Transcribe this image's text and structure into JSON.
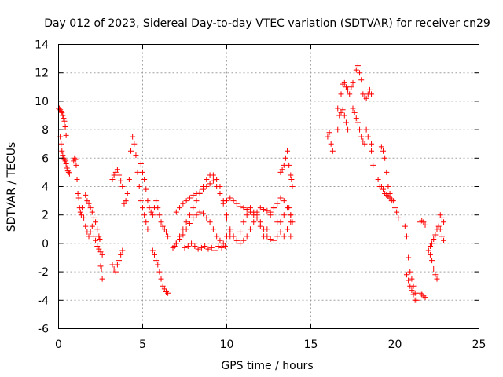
{
  "chart_data": {
    "type": "scatter",
    "title": "Day 012 of 2023, Sidereal Day-to-day VTEC variation (SDTVAR) for receiver cn29",
    "xlabel": "GPS time / hours",
    "ylabel": "SDTVAR / TECUs",
    "xlim": [
      0,
      25
    ],
    "ylim": [
      -6,
      14
    ],
    "xticks": [
      "0",
      "5",
      "10",
      "15",
      "20",
      "25"
    ],
    "yticks": [
      "-6",
      "-4",
      "-2",
      "0",
      "2",
      "4",
      "6",
      "8",
      "10",
      "12",
      "14"
    ],
    "grid": true,
    "marker": "+",
    "color": "#ff0000",
    "series": [
      {
        "name": "SDTVAR",
        "x": [
          0.0,
          0.05,
          0.1,
          0.15,
          0.2,
          0.25,
          0.3,
          0.35,
          0.4,
          0.45,
          0.1,
          0.15,
          0.2,
          0.25,
          0.3,
          0.35,
          0.4,
          0.45,
          0.5,
          0.55,
          0.6,
          0.65,
          0.9,
          0.95,
          1.0,
          1.05,
          1.1,
          1.15,
          1.2,
          1.25,
          1.3,
          1.35,
          1.4,
          1.5,
          1.6,
          1.7,
          1.8,
          1.9,
          2.0,
          2.1,
          2.2,
          2.3,
          2.4,
          2.5,
          2.6,
          1.6,
          1.7,
          1.8,
          1.9,
          2.0,
          2.1,
          2.2,
          2.3,
          2.4,
          2.45,
          2.5,
          2.55,
          2.6,
          3.2,
          3.3,
          3.4,
          3.5,
          3.6,
          3.7,
          3.8,
          3.2,
          3.3,
          3.4,
          3.5,
          3.6,
          3.7,
          3.8,
          3.9,
          4.0,
          4.1,
          4.2,
          4.3,
          4.4,
          4.5,
          4.6,
          4.7,
          4.8,
          4.9,
          5.0,
          5.1,
          5.2,
          5.3,
          4.9,
          5.0,
          5.1,
          5.2,
          5.3,
          5.4,
          5.5,
          5.6,
          5.7,
          5.8,
          5.9,
          6.0,
          6.1,
          6.2,
          6.3,
          6.4,
          6.5,
          5.6,
          5.7,
          5.8,
          5.9,
          6.0,
          6.1,
          6.2,
          6.3,
          6.4,
          6.5,
          6.8,
          6.9,
          7.0,
          7.2,
          7.4,
          7.6,
          7.8,
          8.0,
          8.2,
          8.4,
          8.6,
          8.8,
          9.0,
          9.2,
          9.4,
          9.6,
          9.8,
          10.0,
          7.0,
          7.2,
          7.4,
          7.6,
          7.8,
          8.0,
          8.2,
          8.4,
          8.6,
          8.8,
          9.0,
          9.2,
          9.4,
          9.6,
          9.8,
          10.0,
          10.2,
          7.0,
          7.2,
          7.4,
          7.6,
          7.8,
          8.0,
          8.2,
          8.4,
          8.6,
          8.8,
          9.0,
          9.2,
          9.4,
          9.6,
          9.8,
          7.5,
          7.7,
          7.9,
          8.1,
          8.3,
          8.5,
          8.7,
          8.9,
          9.1,
          9.3,
          9.5,
          9.7,
          9.9,
          10.0,
          10.2,
          10.4,
          10.6,
          10.8,
          11.0,
          11.2,
          11.4,
          11.6,
          11.8,
          12.0,
          12.2,
          12.4,
          12.6,
          12.8,
          13.0,
          13.2,
          13.4,
          13.6,
          13.8,
          10.0,
          10.2,
          10.4,
          10.6,
          10.8,
          11.0,
          11.2,
          11.4,
          11.6,
          11.8,
          12.0,
          12.2,
          12.4,
          12.6,
          12.8,
          13.0,
          13.2,
          13.4,
          13.6,
          13.8,
          10.2,
          10.4,
          10.6,
          10.8,
          11.0,
          11.2,
          11.4,
          11.6,
          11.8,
          12.0,
          12.2,
          12.4,
          12.6,
          12.8,
          13.0,
          13.2,
          13.4,
          13.6,
          13.8,
          13.2,
          13.3,
          13.4,
          13.5,
          13.6,
          13.7,
          13.8,
          13.85,
          13.9,
          13.7,
          13.8,
          13.9,
          16.0,
          16.1,
          16.2,
          16.3,
          16.6,
          16.7,
          16.8,
          16.9,
          17.0,
          17.1,
          17.2,
          17.3,
          17.4,
          17.5,
          16.6,
          16.7,
          16.8,
          16.9,
          17.0,
          17.1,
          17.2,
          17.5,
          17.6,
          17.7,
          17.8,
          17.9,
          18.0,
          18.1,
          18.2,
          18.3,
          17.7,
          17.8,
          17.9,
          18.0,
          18.1,
          18.2,
          18.3,
          18.4,
          18.5,
          18.6,
          18.4,
          18.6,
          18.6,
          18.7,
          19.0,
          19.1,
          19.2,
          19.3,
          19.4,
          19.5,
          19.6,
          19.7,
          19.8,
          19.9,
          19.2,
          19.3,
          19.4,
          19.5,
          19.6,
          19.7,
          19.8,
          20.0,
          20.1,
          20.2,
          20.6,
          20.7,
          20.8,
          20.9,
          21.0,
          21.1,
          21.2,
          21.3,
          20.7,
          20.8,
          20.9,
          21.0,
          21.1,
          21.2,
          21.5,
          21.6,
          21.7,
          21.8,
          21.5,
          21.6,
          21.7,
          21.8,
          22.0,
          22.1,
          22.2,
          22.3,
          22.4,
          22.5,
          22.1,
          22.2,
          22.3,
          22.4,
          22.5,
          22.6,
          22.7,
          22.8,
          22.9,
          22.7,
          22.8,
          22.9
        ],
        "y": [
          9.5,
          9.5,
          9.4,
          9.3,
          9.2,
          9.0,
          8.8,
          8.6,
          8.2,
          7.6,
          7.5,
          7.0,
          6.5,
          6.2,
          6.0,
          5.9,
          5.8,
          5.6,
          5.3,
          5.1,
          5.0,
          4.9,
          5.8,
          6.0,
          5.9,
          5.5,
          4.5,
          3.5,
          3.2,
          2.5,
          2.2,
          2.0,
          2.5,
          1.8,
          1.2,
          0.8,
          0.5,
          0.8,
          1.2,
          0.5,
          0.2,
          -0.2,
          -0.4,
          -0.6,
          -0.8,
          3.4,
          3.0,
          2.8,
          2.5,
          2.2,
          1.8,
          1.5,
          1.0,
          0.5,
          0.3,
          -1.6,
          -1.8,
          -2.5,
          4.5,
          4.8,
          5.0,
          5.2,
          4.8,
          4.4,
          4.0,
          -1.5,
          -1.8,
          -2.0,
          -1.5,
          -1.2,
          -0.8,
          -0.5,
          2.8,
          3.0,
          3.5,
          4.5,
          6.5,
          7.5,
          7.0,
          6.2,
          5.0,
          4.0,
          3.0,
          2.5,
          2.0,
          1.5,
          1.0,
          5.6,
          5.0,
          4.5,
          3.8,
          3.0,
          2.5,
          2.2,
          2.0,
          2.5,
          3.0,
          2.5,
          2.0,
          1.5,
          1.2,
          1.0,
          0.8,
          0.5,
          -0.5,
          -0.8,
          -1.2,
          -1.5,
          -2.0,
          -2.5,
          -3.0,
          -3.2,
          -3.4,
          -3.5,
          -0.3,
          -0.2,
          0.0,
          0.5,
          1.0,
          1.5,
          2.0,
          2.5,
          3.0,
          3.5,
          4.0,
          4.5,
          4.8,
          4.8,
          4.5,
          4.0,
          3.0,
          2.0,
          2.2,
          2.5,
          2.8,
          3.0,
          3.2,
          3.4,
          3.5,
          3.6,
          3.8,
          4.0,
          4.2,
          4.4,
          4.0,
          3.5,
          2.8,
          1.8,
          0.5,
          0.0,
          0.3,
          0.6,
          1.0,
          1.4,
          1.8,
          2.0,
          2.2,
          2.1,
          1.8,
          1.5,
          1.0,
          0.5,
          0.2,
          0.0,
          -0.3,
          -0.2,
          0.0,
          -0.2,
          -0.4,
          -0.3,
          -0.2,
          -0.4,
          -0.3,
          -0.5,
          -0.2,
          -0.3,
          -0.2,
          0.5,
          0.8,
          0.5,
          0.2,
          0.8,
          1.5,
          2.0,
          2.5,
          2.2,
          1.8,
          1.2,
          0.5,
          1.0,
          2.0,
          2.5,
          1.5,
          0.8,
          0.5,
          1.0,
          1.5,
          3.0,
          3.2,
          3.0,
          2.8,
          2.6,
          2.5,
          2.4,
          2.2,
          2.0,
          2.2,
          2.5,
          2.4,
          2.3,
          2.2,
          2.5,
          2.8,
          3.2,
          3.0,
          2.5,
          2.0,
          1.0,
          0.5,
          0.2,
          0.0,
          0.2,
          0.5,
          1.0,
          1.5,
          2.0,
          1.5,
          1.0,
          0.5,
          0.3,
          0.2,
          0.5,
          1.5,
          2.0,
          1.0,
          0.5,
          5.0,
          5.2,
          5.5,
          6.0,
          6.5,
          5.5,
          4.8,
          4.5,
          4.0,
          2.5,
          2.0,
          1.5,
          7.5,
          7.8,
          7.0,
          6.5,
          8.0,
          9.0,
          10.5,
          11.2,
          11.3,
          11.0,
          10.8,
          10.5,
          11.0,
          11.3,
          9.5,
          9.0,
          9.2,
          9.4,
          9.0,
          8.5,
          8.0,
          9.5,
          9.2,
          8.8,
          8.5,
          8.0,
          7.5,
          7.2,
          7.0,
          8.0,
          12.2,
          12.5,
          12.0,
          11.5,
          10.5,
          10.3,
          10.2,
          10.5,
          10.8,
          10.5,
          7.5,
          7.0,
          6.5,
          5.5,
          4.5,
          4.0,
          4.0,
          3.8,
          3.5,
          3.4,
          3.3,
          3.2,
          3.1,
          3.0,
          6.8,
          6.5,
          6.0,
          5.0,
          4.0,
          3.5,
          3.0,
          2.5,
          2.2,
          1.8,
          1.2,
          0.5,
          -1.0,
          -2.0,
          -2.5,
          -3.0,
          -3.5,
          -4.0,
          -2.2,
          -2.6,
          -3.0,
          -3.3,
          -3.6,
          -4.0,
          1.5,
          1.6,
          1.5,
          1.3,
          -3.5,
          -3.6,
          -3.7,
          -3.8,
          -0.5,
          -0.8,
          -1.2,
          -1.8,
          -2.2,
          -2.5,
          -0.2,
          0.0,
          0.3,
          0.6,
          1.0,
          1.2,
          1.0,
          0.5,
          0.2,
          2.0,
          1.8,
          1.5
        ]
      }
    ]
  }
}
